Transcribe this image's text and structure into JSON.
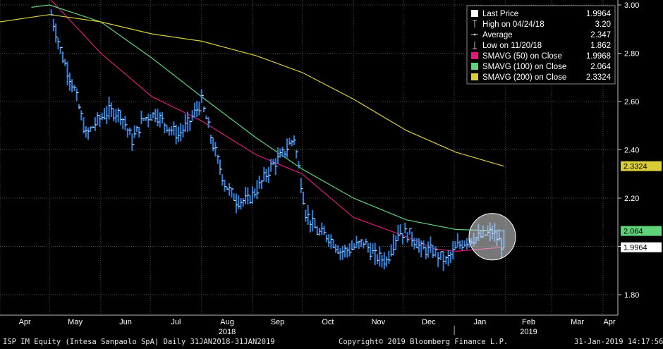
{
  "footer": {
    "left": "ISP IM Equity (Intesa Sanpaolo SpA)  Daily 31JAN2018-31JAN2019",
    "center": "Copyright© 2019 Bloomberg Finance L.P.",
    "right": "31-Jan-2019 14:17:56"
  },
  "colors": {
    "background": "#000000",
    "price": "#2f7fdc",
    "sma50": "#e0197d",
    "sma100": "#5fd37a",
    "sma200": "#d9cc3a",
    "grid": "#4a4a4a"
  },
  "chart_data": {
    "type": "bar",
    "title": "",
    "xlabel": "",
    "ylabel": "",
    "ylim": [
      1.7,
      3.0
    ],
    "grid": true,
    "legend_position": "top-right",
    "x_tick_labels": [
      "Apr",
      "May",
      "Jun",
      "Jul",
      "Aug",
      "Sep",
      "Oct",
      "Nov",
      "Dec",
      "Jan",
      "Feb",
      "Mar",
      "Apr"
    ],
    "year_labels": [
      {
        "label": "2018",
        "month": "Aug"
      },
      {
        "label": "2019",
        "month": "Feb"
      }
    ],
    "y_tick_labels": [
      "3.00",
      "2.80",
      "2.60",
      "2.40",
      "2.20",
      "2.00",
      "1.80"
    ],
    "legend": [
      {
        "label": "Last Price",
        "value": "1.9964",
        "marker": "square",
        "color": "#ffffff"
      },
      {
        "label": "High on 04/24/18",
        "value": "3.20",
        "marker": "high",
        "color": "#bbbbbb"
      },
      {
        "label": "Average",
        "value": "2.347",
        "marker": "avg",
        "color": "#bbbbbb"
      },
      {
        "label": "Low on 11/20/18",
        "value": "1.862",
        "marker": "low",
        "color": "#bbbbbb"
      },
      {
        "label": "SMAVG (50)  on Close",
        "value": "1.9968",
        "marker": "square",
        "color": "#e0197d"
      },
      {
        "label": "SMAVG (100)  on Close",
        "value": "2.064",
        "marker": "square",
        "color": "#5fd37a"
      },
      {
        "label": "SMAVG (200)  on Close",
        "value": "2.3324",
        "marker": "square",
        "color": "#d9cc3a"
      }
    ],
    "axis_badges": [
      {
        "label": "2.3324",
        "value": 2.3324,
        "color": "#d9cc3a",
        "text_color": "#000000"
      },
      {
        "label": "2.064",
        "value": 2.064,
        "color": "#5fd37a",
        "text_color": "#000000"
      },
      {
        "label": "1.9964",
        "value": 1.9964,
        "color": "#ffffff",
        "text_color": "#000000"
      }
    ],
    "series": [
      {
        "name": "Last Price",
        "kind": "hlc",
        "dates": [
          "2018-05-02",
          "2018-05-09",
          "2018-05-16",
          "2018-05-23",
          "2018-05-30",
          "2018-06-06",
          "2018-06-13",
          "2018-06-20",
          "2018-06-27",
          "2018-07-04",
          "2018-07-11",
          "2018-07-18",
          "2018-07-25",
          "2018-08-01",
          "2018-08-08",
          "2018-08-15",
          "2018-08-22",
          "2018-08-29",
          "2018-09-05",
          "2018-09-12",
          "2018-09-19",
          "2018-09-26",
          "2018-10-03",
          "2018-10-10",
          "2018-10-17",
          "2018-10-24",
          "2018-10-31",
          "2018-11-07",
          "2018-11-14",
          "2018-11-21",
          "2018-11-28",
          "2018-12-05",
          "2018-12-12",
          "2018-12-19",
          "2018-12-27",
          "2019-01-03",
          "2019-01-10",
          "2019-01-17",
          "2019-01-24",
          "2019-01-31"
        ],
        "values": [
          2.96,
          2.78,
          2.65,
          2.46,
          2.52,
          2.56,
          2.55,
          2.44,
          2.53,
          2.55,
          2.5,
          2.46,
          2.52,
          2.6,
          2.42,
          2.26,
          2.19,
          2.19,
          2.25,
          2.33,
          2.38,
          2.45,
          2.14,
          2.06,
          2.04,
          1.98,
          1.99,
          2.02,
          1.96,
          1.94,
          2.06,
          2.05,
          1.99,
          1.98,
          1.94,
          2.0,
          2.03,
          2.04,
          2.06,
          1.9964
        ]
      },
      {
        "name": "SMAVG (50)  on Close",
        "dates": [
          "2018-05-02",
          "2018-06-01",
          "2018-07-02",
          "2018-08-01",
          "2018-09-03",
          "2018-10-01",
          "2018-11-01",
          "2018-12-03",
          "2018-12-20",
          "2019-01-02",
          "2019-01-31"
        ],
        "values": [
          3.02,
          2.8,
          2.62,
          2.52,
          2.38,
          2.3,
          2.12,
          2.04,
          1.99,
          1.98,
          1.9968
        ]
      },
      {
        "name": "SMAVG (100)  on Close",
        "dates": [
          "2018-04-20",
          "2018-05-01",
          "2018-06-01",
          "2018-07-02",
          "2018-08-01",
          "2018-09-03",
          "2018-10-01",
          "2018-11-01",
          "2018-12-03",
          "2019-01-02",
          "2019-01-31"
        ],
        "values": [
          2.99,
          3.0,
          2.93,
          2.78,
          2.62,
          2.45,
          2.32,
          2.2,
          2.11,
          2.07,
          2.064
        ]
      },
      {
        "name": "SMAVG (200)  on Close",
        "dates": [
          "2018-04-01",
          "2018-05-01",
          "2018-06-01",
          "2018-07-02",
          "2018-08-01",
          "2018-09-03",
          "2018-10-01",
          "2018-11-01",
          "2018-12-03",
          "2019-01-02",
          "2019-01-31"
        ],
        "values": [
          2.93,
          2.96,
          2.93,
          2.88,
          2.85,
          2.79,
          2.72,
          2.61,
          2.48,
          2.39,
          2.3324
        ]
      }
    ]
  }
}
